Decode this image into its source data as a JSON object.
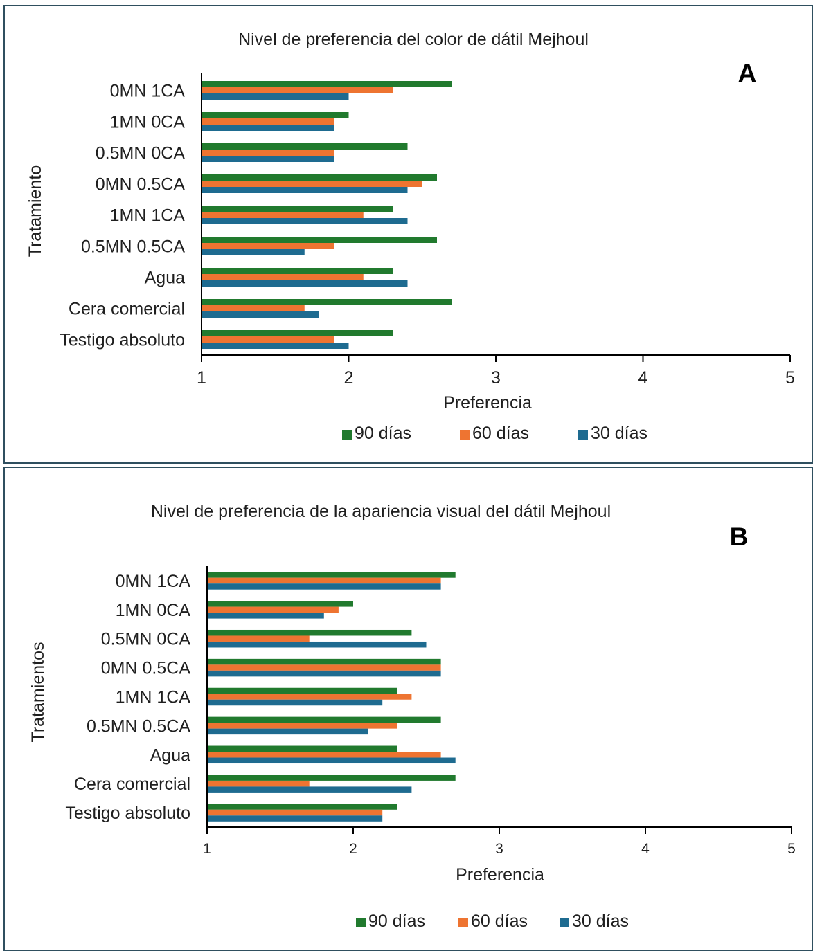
{
  "colors": {
    "s90": "#217a2e",
    "s60": "#ee7431",
    "s30": "#1e6b90",
    "axis": "#000000"
  },
  "chart_data": [
    {
      "type": "bar",
      "orientation": "horizontal",
      "panel_letter": "A",
      "title": "Nivel de preferencia del color de dátil Mejhoul",
      "xlabel": "Preferencia",
      "ylabel": "Tratamiento",
      "xlim": [
        1,
        5
      ],
      "xticks": [
        "1",
        "2",
        "3",
        "4",
        "5"
      ],
      "categories": [
        "0MN 1CA",
        "1MN 0CA",
        "0.5MN 0CA",
        "0MN 0.5CA",
        "1MN 1CA",
        "0.5MN 0.5CA",
        "Agua",
        "Cera comercial",
        "Testigo absoluto"
      ],
      "series": [
        {
          "name": "90 días",
          "values": [
            2.7,
            2.0,
            2.4,
            2.6,
            2.3,
            2.6,
            2.3,
            2.7,
            2.3
          ]
        },
        {
          "name": "60 días",
          "values": [
            2.3,
            1.9,
            1.9,
            2.5,
            2.1,
            1.9,
            2.1,
            1.7,
            1.9
          ]
        },
        {
          "name": "30 días",
          "values": [
            2.0,
            1.9,
            1.9,
            2.4,
            2.4,
            1.7,
            2.4,
            1.8,
            2.0
          ]
        }
      ],
      "legend_position": "bottom",
      "grid": false
    },
    {
      "type": "bar",
      "orientation": "horizontal",
      "panel_letter": "B",
      "title": "Nivel de preferencia de la apariencia visual del dátil Mejhoul",
      "xlabel": "Preferencia",
      "ylabel": "Tratamientos",
      "xlim": [
        1,
        5
      ],
      "xticks": [
        "1",
        "2",
        "3",
        "4",
        "5"
      ],
      "categories": [
        "0MN 1CA",
        "1MN 0CA",
        "0.5MN 0CA",
        "0MN 0.5CA",
        "1MN 1CA",
        "0.5MN 0.5CA",
        "Agua",
        "Cera comercial",
        "Testigo absoluto"
      ],
      "series": [
        {
          "name": "90 días",
          "values": [
            2.7,
            2.0,
            2.4,
            2.6,
            2.3,
            2.6,
            2.3,
            2.7,
            2.3
          ]
        },
        {
          "name": "60 días",
          "values": [
            2.6,
            1.9,
            1.7,
            2.6,
            2.4,
            2.3,
            2.6,
            1.7,
            2.2
          ]
        },
        {
          "name": "30 días",
          "values": [
            2.6,
            1.8,
            2.5,
            2.6,
            2.2,
            2.1,
            2.7,
            2.4,
            2.2
          ]
        }
      ],
      "legend_position": "bottom",
      "grid": false
    }
  ]
}
